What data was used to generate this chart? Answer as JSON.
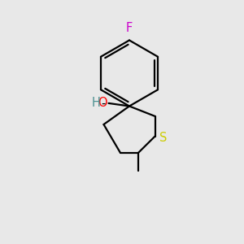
{
  "bg_color": "#e8e8e8",
  "bond_color": "#000000",
  "F_color": "#cc00cc",
  "O_color": "#ff0000",
  "H_color": "#4a9090",
  "S_color": "#cccc00",
  "line_width": 1.6,
  "fig_size": [
    3.0,
    3.0
  ],
  "dpi": 100,
  "xlim": [
    0,
    10
  ],
  "ylim": [
    0,
    10
  ]
}
